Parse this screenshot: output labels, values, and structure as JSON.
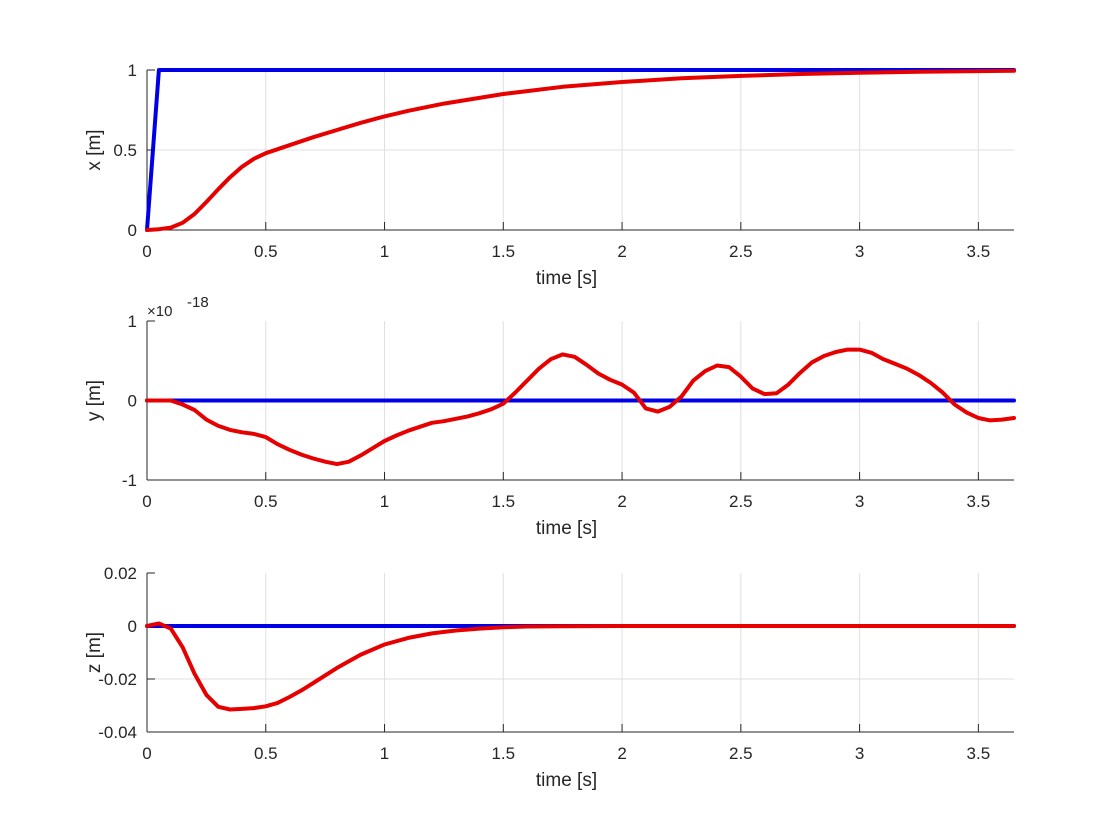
{
  "chart_data": [
    {
      "type": "line",
      "xlabel": "time [s]",
      "ylabel": "x [m]",
      "xlim": [
        0,
        3.65
      ],
      "ylim": [
        0,
        1
      ],
      "xticks": [
        0,
        0.5,
        1,
        1.5,
        2,
        2.5,
        3,
        3.5
      ],
      "xtick_labels": [
        "0",
        "0.5",
        "1",
        "1.5",
        "2",
        "2.5",
        "3",
        "3.5"
      ],
      "yticks": [
        0,
        0.5,
        1
      ],
      "ytick_labels": [
        "0",
        "0.5",
        "1"
      ],
      "y_exponent": "",
      "grid": true,
      "series": [
        {
          "color": "#0000e6",
          "x": [
            0,
            0.05,
            3.65
          ],
          "y": [
            0,
            1,
            1
          ]
        },
        {
          "color": "#e60000",
          "x": [
            0,
            0.05,
            0.1,
            0.15,
            0.2,
            0.25,
            0.3,
            0.35,
            0.4,
            0.45,
            0.5,
            0.6,
            0.7,
            0.8,
            0.9,
            1.0,
            1.1,
            1.25,
            1.5,
            1.75,
            2.0,
            2.25,
            2.5,
            2.75,
            3.0,
            3.25,
            3.5,
            3.65
          ],
          "y": [
            0,
            0.005,
            0.015,
            0.045,
            0.1,
            0.175,
            0.255,
            0.33,
            0.395,
            0.445,
            0.48,
            0.53,
            0.58,
            0.625,
            0.67,
            0.71,
            0.745,
            0.79,
            0.85,
            0.895,
            0.925,
            0.948,
            0.963,
            0.975,
            0.983,
            0.989,
            0.993,
            0.995
          ]
        }
      ]
    },
    {
      "type": "line",
      "xlabel": "time [s]",
      "ylabel": "y [m]",
      "xlim": [
        0,
        3.65
      ],
      "ylim": [
        -1,
        1
      ],
      "xticks": [
        0,
        0.5,
        1,
        1.5,
        2,
        2.5,
        3,
        3.5
      ],
      "xtick_labels": [
        "0",
        "0.5",
        "1",
        "1.5",
        "2",
        "2.5",
        "3",
        "3.5"
      ],
      "yticks": [
        -1,
        0,
        1
      ],
      "ytick_labels": [
        "-1",
        "0",
        "1"
      ],
      "y_exponent": "×10",
      "y_exponent_power": "-18",
      "grid": true,
      "series": [
        {
          "color": "#0000e6",
          "x": [
            0,
            3.65
          ],
          "y": [
            0,
            0
          ]
        },
        {
          "color": "#e60000",
          "x": [
            0,
            0.1,
            0.15,
            0.2,
            0.25,
            0.3,
            0.35,
            0.4,
            0.45,
            0.5,
            0.55,
            0.6,
            0.65,
            0.7,
            0.75,
            0.8,
            0.85,
            0.9,
            0.95,
            1.0,
            1.05,
            1.1,
            1.15,
            1.2,
            1.25,
            1.3,
            1.35,
            1.4,
            1.45,
            1.5,
            1.55,
            1.6,
            1.65,
            1.7,
            1.75,
            1.8,
            1.85,
            1.9,
            1.95,
            2.0,
            2.05,
            2.1,
            2.15,
            2.2,
            2.25,
            2.3,
            2.35,
            2.4,
            2.45,
            2.5,
            2.55,
            2.6,
            2.65,
            2.7,
            2.75,
            2.8,
            2.85,
            2.9,
            2.95,
            3.0,
            3.05,
            3.1,
            3.15,
            3.2,
            3.25,
            3.3,
            3.35,
            3.4,
            3.45,
            3.5,
            3.55,
            3.6,
            3.65
          ],
          "y": [
            0,
            0,
            -0.05,
            -0.12,
            -0.24,
            -0.32,
            -0.37,
            -0.4,
            -0.42,
            -0.46,
            -0.55,
            -0.62,
            -0.68,
            -0.73,
            -0.77,
            -0.8,
            -0.77,
            -0.69,
            -0.6,
            -0.51,
            -0.44,
            -0.38,
            -0.33,
            -0.28,
            -0.26,
            -0.23,
            -0.2,
            -0.16,
            -0.11,
            -0.04,
            0.1,
            0.25,
            0.4,
            0.52,
            0.58,
            0.55,
            0.45,
            0.34,
            0.26,
            0.2,
            0.1,
            -0.1,
            -0.14,
            -0.08,
            0.05,
            0.25,
            0.37,
            0.44,
            0.42,
            0.3,
            0.15,
            0.08,
            0.09,
            0.2,
            0.35,
            0.48,
            0.56,
            0.61,
            0.64,
            0.64,
            0.6,
            0.52,
            0.46,
            0.4,
            0.32,
            0.22,
            0.1,
            -0.05,
            -0.15,
            -0.22,
            -0.25,
            -0.24,
            -0.22
          ]
        }
      ]
    },
    {
      "type": "line",
      "xlabel": "time [s]",
      "ylabel": "z [m]",
      "xlim": [
        0,
        3.65
      ],
      "ylim": [
        -0.04,
        0.02
      ],
      "xticks": [
        0,
        0.5,
        1,
        1.5,
        2,
        2.5,
        3,
        3.5
      ],
      "xtick_labels": [
        "0",
        "0.5",
        "1",
        "1.5",
        "2",
        "2.5",
        "3",
        "3.5"
      ],
      "yticks": [
        -0.04,
        -0.02,
        0,
        0.02
      ],
      "ytick_labels": [
        "-0.04",
        "-0.02",
        "0",
        "0.02"
      ],
      "y_exponent": "",
      "grid": true,
      "series": [
        {
          "color": "#0000e6",
          "x": [
            0,
            3.65
          ],
          "y": [
            0,
            0
          ]
        },
        {
          "color": "#e60000",
          "x": [
            0,
            0.05,
            0.1,
            0.15,
            0.2,
            0.25,
            0.3,
            0.35,
            0.4,
            0.45,
            0.5,
            0.55,
            0.6,
            0.65,
            0.7,
            0.8,
            0.9,
            1.0,
            1.1,
            1.2,
            1.3,
            1.4,
            1.5,
            1.6,
            1.75,
            2.0,
            2.5,
            3.0,
            3.65
          ],
          "y": [
            0,
            0.001,
            -0.001,
            -0.008,
            -0.018,
            -0.026,
            -0.0305,
            -0.0315,
            -0.0313,
            -0.031,
            -0.0303,
            -0.029,
            -0.0268,
            -0.0243,
            -0.0215,
            -0.0158,
            -0.0108,
            -0.007,
            -0.0045,
            -0.0028,
            -0.0017,
            -0.001,
            -0.0005,
            -0.0002,
            -0.0001,
            0,
            0,
            0,
            0
          ]
        }
      ]
    }
  ]
}
